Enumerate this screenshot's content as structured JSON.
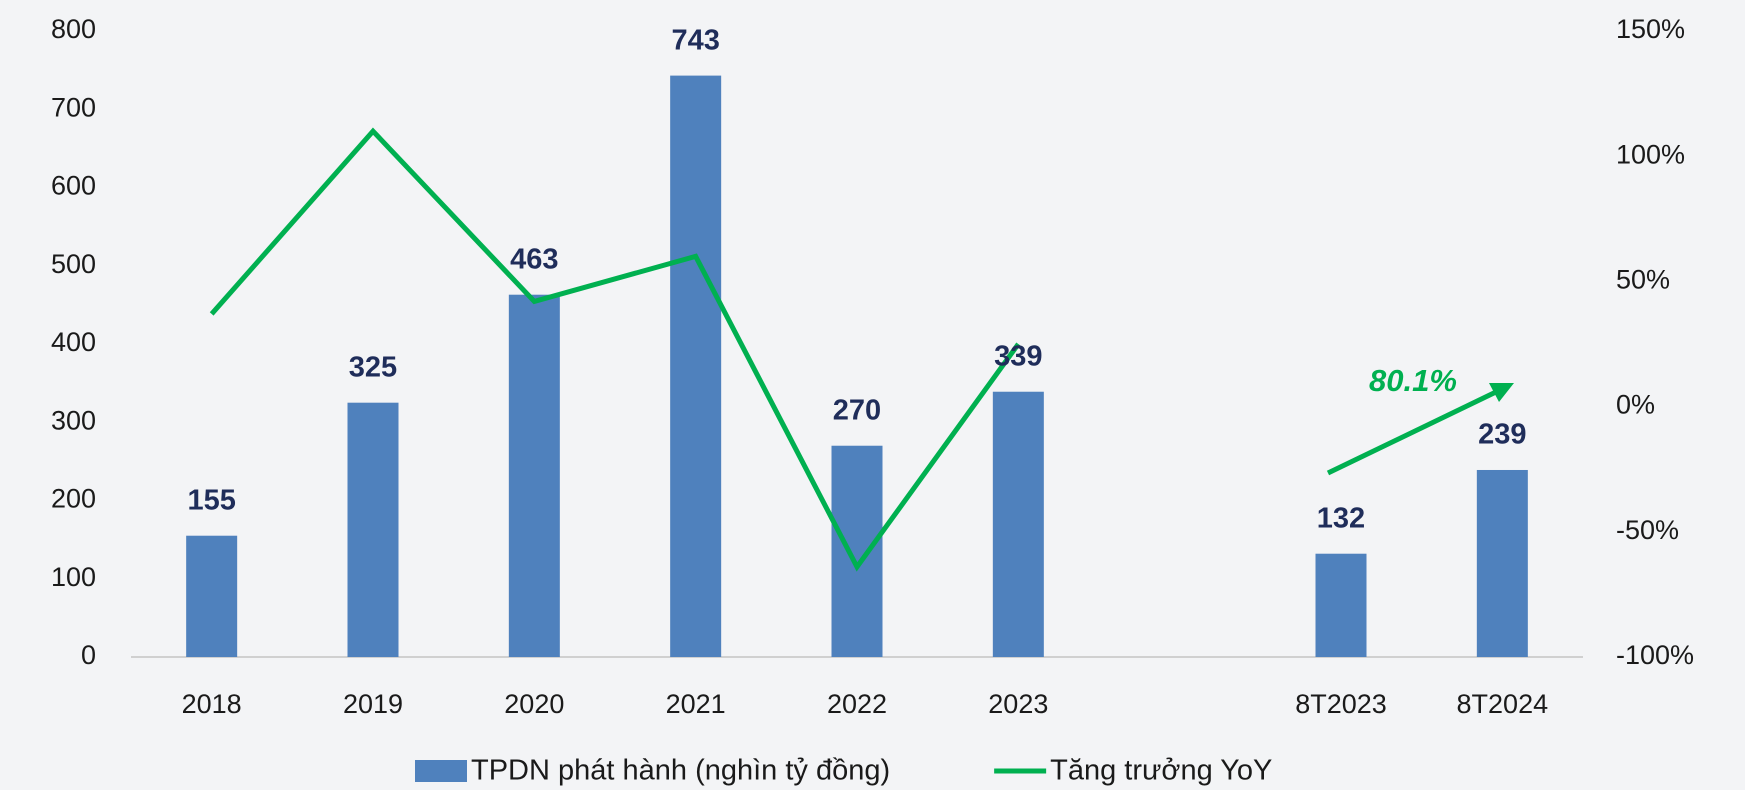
{
  "chart_data": {
    "type": "bar",
    "categories": [
      "2018",
      "2019",
      "2020",
      "2021",
      "2022",
      "2023",
      null,
      "8T2023",
      "8T2024"
    ],
    "series": [
      {
        "name": "TPDN phát hành (nghìn tỷ đồng)",
        "type": "bar",
        "color": "#4f81bd",
        "values": [
          155,
          325,
          463,
          743,
          270,
          339,
          null,
          132,
          239
        ]
      },
      {
        "name": "Tăng trưởng YoY",
        "type": "line",
        "axis": "y2",
        "color": "#00b050",
        "values": [
          37,
          110,
          42,
          60,
          -64,
          25,
          null,
          null,
          null
        ]
      }
    ],
    "ylim": [
      0,
      800
    ],
    "yticks": [
      0,
      100,
      200,
      300,
      400,
      500,
      600,
      700,
      800
    ],
    "y2lim": [
      -100,
      150
    ],
    "y2ticks": [
      {
        "value": -100,
        "label": "-100%"
      },
      {
        "value": -50,
        "label": "-50%"
      },
      {
        "value": 0,
        "label": "0%"
      },
      {
        "value": 50,
        "label": "50%"
      },
      {
        "value": 100,
        "label": "100%"
      },
      {
        "value": 150,
        "label": "150%"
      }
    ],
    "annotation": "80.1%",
    "legend": "bottom"
  }
}
